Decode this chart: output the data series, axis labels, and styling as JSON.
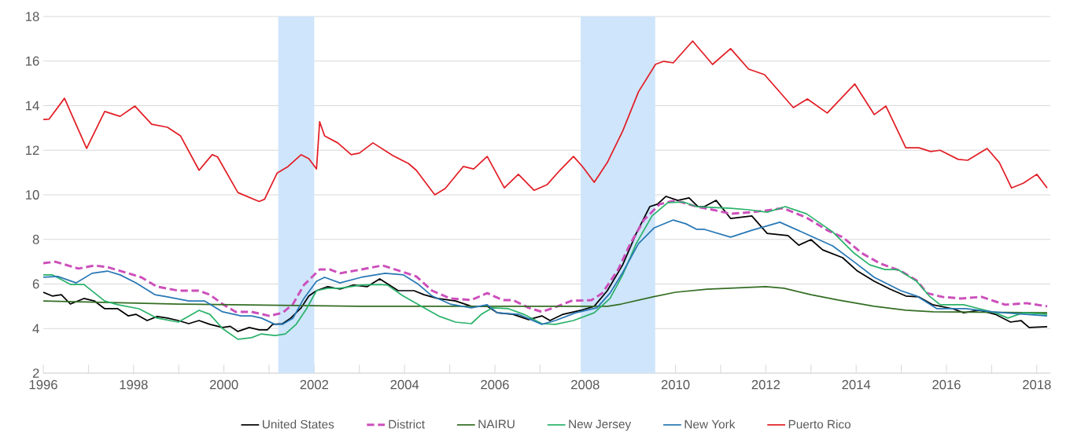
{
  "chart_data": {
    "type": "line",
    "xlim": [
      1996,
      2018.3
    ],
    "ylim": [
      2,
      18
    ],
    "xticks": [
      1996,
      {
        "value": 1997,
        "label": null
      },
      1998,
      {
        "value": 1999,
        "label": null
      },
      2000,
      {
        "value": 2001,
        "label": null
      },
      2002,
      {
        "value": 2003,
        "label": null
      },
      2004,
      {
        "value": 2005,
        "label": null
      },
      2006,
      {
        "value": 2007,
        "label": null
      },
      2008,
      {
        "value": 2009,
        "label": null
      },
      2010,
      {
        "value": 2011,
        "label": null
      },
      2012,
      {
        "value": 2013,
        "label": null
      },
      2014,
      {
        "value": 2015,
        "label": null
      },
      2016,
      {
        "value": 2017,
        "label": null
      },
      2018
    ],
    "yticks": [
      2,
      4,
      6,
      8,
      10,
      12,
      14,
      16,
      18
    ],
    "grid": "y",
    "legend": "bottom",
    "bands": [
      {
        "axis": "x",
        "from": 2001.2,
        "to": 2002.0,
        "color": "#cfe5fb"
      },
      {
        "axis": "x",
        "from": 2007.9,
        "to": 2009.55,
        "color": "#cfe5fb"
      }
    ],
    "series": [
      {
        "name": "United States",
        "color": "#000000",
        "x": [
          1996,
          1996.2,
          1996.4,
          1996.6,
          1996.9,
          1997.13,
          1997.36,
          1997.65,
          1997.88,
          1998.05,
          1998.3,
          1998.52,
          1998.75,
          1998.99,
          1999.22,
          1999.45,
          1999.69,
          1999.97,
          2000.14,
          2000.31,
          2000.56,
          2000.78,
          2000.96,
          2001.08,
          2001.3,
          2001.48,
          2001.71,
          2001.88,
          2002.05,
          2002.3,
          2002.57,
          2002.87,
          2003.17,
          2003.45,
          2003.86,
          2004.21,
          2004.43,
          2004.73,
          2005.13,
          2005.48,
          2005.83,
          2006.05,
          2006.4,
          2006.75,
          2007.04,
          2007.22,
          2007.51,
          2007.91,
          2008.2,
          2008.49,
          2008.83,
          2009.13,
          2009.43,
          2009.6,
          2009.79,
          2010.05,
          2010.3,
          2010.5,
          2010.64,
          2010.9,
          2011.22,
          2011.69,
          2012.03,
          2012.49,
          2012.73,
          2013.0,
          2013.26,
          2013.7,
          2014.03,
          2014.4,
          2014.75,
          2015.1,
          2015.39,
          2015.69,
          2016.14,
          2016.38,
          2016.73,
          2017.08,
          2017.42,
          2017.65,
          2017.83,
          2018.23
        ],
        "values": [
          5.63,
          5.46,
          5.52,
          5.1,
          5.35,
          5.24,
          4.89,
          4.89,
          4.57,
          4.64,
          4.36,
          4.54,
          4.47,
          4.36,
          4.22,
          4.36,
          4.19,
          4.05,
          4.1,
          3.87,
          4.05,
          3.94,
          3.94,
          4.19,
          4.22,
          4.47,
          4.93,
          5.46,
          5.7,
          5.88,
          5.77,
          5.95,
          5.88,
          6.23,
          5.7,
          5.7,
          5.52,
          5.35,
          5.24,
          5.0,
          5.0,
          4.71,
          4.64,
          4.4,
          4.57,
          4.36,
          4.64,
          4.82,
          5.0,
          5.7,
          6.86,
          8.27,
          9.47,
          9.58,
          9.93,
          9.75,
          9.86,
          9.47,
          9.47,
          9.75,
          8.94,
          9.05,
          8.27,
          8.17,
          7.74,
          7.99,
          7.53,
          7.18,
          6.58,
          6.12,
          5.77,
          5.46,
          5.42,
          5.07,
          4.89,
          4.71,
          4.82,
          4.64,
          4.29,
          4.36,
          4.05,
          4.08
        ]
      },
      {
        "name": "District",
        "color": "#cc4fbb",
        "line_style": "dashed",
        "x": [
          1996,
          1996.26,
          1996.78,
          1997.13,
          1997.42,
          1997.83,
          1998.17,
          1998.52,
          1998.99,
          1999.45,
          1999.69,
          1999.97,
          2000.26,
          2000.61,
          2001.01,
          2001.3,
          2001.53,
          2001.77,
          2002.12,
          2002.35,
          2002.57,
          2003.04,
          2003.51,
          2003.91,
          2004.26,
          2004.61,
          2005.01,
          2005.48,
          2005.83,
          2006.17,
          2006.4,
          2006.75,
          2007.04,
          2007.39,
          2007.69,
          2008.14,
          2008.38,
          2008.73,
          2009.0,
          2009.3,
          2009.65,
          2010.0,
          2010.47,
          2010.82,
          2011.22,
          2011.69,
          2011.97,
          2012.38,
          2012.9,
          2013.36,
          2013.7,
          2014.12,
          2014.52,
          2014.99,
          2015.34,
          2015.57,
          2015.91,
          2016.32,
          2016.78,
          2017.3,
          2017.77,
          2018.23
        ],
        "values": [
          6.93,
          7.0,
          6.69,
          6.83,
          6.76,
          6.51,
          6.3,
          5.88,
          5.7,
          5.7,
          5.52,
          5.1,
          4.75,
          4.75,
          4.57,
          4.71,
          5.1,
          5.95,
          6.65,
          6.65,
          6.48,
          6.65,
          6.83,
          6.58,
          6.34,
          5.7,
          5.35,
          5.28,
          5.59,
          5.28,
          5.28,
          4.93,
          4.75,
          5.0,
          5.24,
          5.28,
          5.59,
          6.65,
          7.81,
          8.87,
          9.58,
          9.75,
          9.47,
          9.33,
          9.15,
          9.22,
          9.29,
          9.4,
          8.98,
          8.41,
          8.1,
          7.39,
          6.93,
          6.58,
          6.16,
          5.59,
          5.42,
          5.35,
          5.42,
          5.07,
          5.14,
          5.0
        ]
      },
      {
        "name": "NAIRU",
        "color": "#336d23",
        "x": [
          1996,
          1999,
          2003,
          2008.5,
          2008.8,
          2009.5,
          2010.0,
          2010.7,
          2011.2,
          2012.0,
          2012.4,
          2013.0,
          2013.6,
          2014.4,
          2015.1,
          2015.7,
          2018.23
        ],
        "values": [
          5.24,
          5.1,
          5.0,
          5.0,
          5.1,
          5.42,
          5.63,
          5.77,
          5.81,
          5.88,
          5.81,
          5.52,
          5.28,
          5.0,
          4.82,
          4.75,
          4.71
        ]
      },
      {
        "name": "New Jersey",
        "color": "#2ab26a",
        "x": [
          1996,
          1996.2,
          1996.6,
          1996.9,
          1997.36,
          1997.65,
          1998.12,
          1998.52,
          1998.99,
          1999.45,
          1999.69,
          1999.97,
          2000.31,
          2000.61,
          2000.83,
          2001.13,
          2001.36,
          2001.6,
          2001.83,
          2002.05,
          2002.3,
          2002.57,
          2003.04,
          2003.45,
          2003.62,
          2003.97,
          2004.43,
          2004.78,
          2005.13,
          2005.48,
          2005.7,
          2005.95,
          2006.3,
          2006.64,
          2007.04,
          2007.34,
          2007.74,
          2008.2,
          2008.55,
          2008.83,
          2009.13,
          2009.48,
          2009.83,
          2010.17,
          2010.47,
          2011.22,
          2011.62,
          2012.03,
          2012.43,
          2012.9,
          2013.48,
          2013.95,
          2014.3,
          2014.64,
          2014.92,
          2015.34,
          2015.62,
          2015.86,
          2016.38,
          2016.73,
          2017.08,
          2017.36,
          2017.7,
          2018.23
        ],
        "values": [
          6.41,
          6.41,
          5.98,
          5.98,
          5.24,
          5.07,
          4.89,
          4.47,
          4.29,
          4.82,
          4.64,
          4.0,
          3.52,
          3.59,
          3.76,
          3.69,
          3.76,
          4.19,
          4.89,
          5.7,
          5.81,
          5.81,
          5.95,
          5.98,
          5.95,
          5.46,
          4.93,
          4.54,
          4.29,
          4.22,
          4.64,
          4.93,
          4.89,
          4.64,
          4.22,
          4.19,
          4.36,
          4.71,
          5.35,
          6.41,
          7.81,
          9.05,
          9.65,
          9.68,
          9.47,
          9.4,
          9.33,
          9.22,
          9.47,
          9.15,
          8.34,
          7.39,
          6.86,
          6.65,
          6.65,
          6.12,
          5.46,
          5.07,
          5.07,
          4.89,
          4.71,
          4.47,
          4.71,
          4.64
        ]
      },
      {
        "name": "New York",
        "color": "#2878b5",
        "x": [
          1996,
          1996.32,
          1996.73,
          1997.08,
          1997.42,
          1997.7,
          1998.05,
          1998.47,
          1998.75,
          1999.22,
          1999.57,
          1999.97,
          2000.38,
          2000.61,
          2000.83,
          2001.13,
          2001.3,
          2001.53,
          2001.77,
          2002.05,
          2002.23,
          2002.57,
          2003.04,
          2003.57,
          2003.97,
          2004.31,
          2004.61,
          2005.01,
          2005.48,
          2005.83,
          2006.05,
          2006.52,
          2007.04,
          2007.34,
          2007.79,
          2008.26,
          2008.55,
          2008.83,
          2009.18,
          2009.53,
          2009.95,
          2010.23,
          2010.47,
          2010.64,
          2011.22,
          2011.69,
          2012.31,
          2012.9,
          2013.48,
          2013.95,
          2014.4,
          2014.99,
          2015.34,
          2015.79,
          2016.43,
          2017.01,
          2018.23
        ],
        "values": [
          6.3,
          6.34,
          6.05,
          6.48,
          6.58,
          6.41,
          6.05,
          5.52,
          5.42,
          5.24,
          5.24,
          4.75,
          4.57,
          4.57,
          4.47,
          4.19,
          4.19,
          4.47,
          5.35,
          6.12,
          6.3,
          6.05,
          6.3,
          6.48,
          6.41,
          5.98,
          5.46,
          5.1,
          4.93,
          5.07,
          4.71,
          4.64,
          4.19,
          4.36,
          4.71,
          4.93,
          5.59,
          6.51,
          7.81,
          8.52,
          8.87,
          8.7,
          8.45,
          8.45,
          8.1,
          8.41,
          8.77,
          8.24,
          7.71,
          7.0,
          6.3,
          5.7,
          5.46,
          4.89,
          4.89,
          4.75,
          4.57
        ]
      },
      {
        "name": "Puerto Rico",
        "color": "#e21e26",
        "x": [
          1996,
          1996.13,
          1996.47,
          1996.96,
          1997.36,
          1997.7,
          1998.03,
          1998.4,
          1998.75,
          1999.04,
          1999.45,
          1999.74,
          1999.86,
          2000.31,
          2000.78,
          2000.9,
          2001.18,
          2001.42,
          2001.71,
          2001.88,
          2002.05,
          2002.12,
          2002.23,
          2002.52,
          2002.82,
          2003.0,
          2003.3,
          2003.74,
          2004.09,
          2004.26,
          2004.67,
          2004.9,
          2005.3,
          2005.53,
          2005.83,
          2006.21,
          2006.52,
          2006.87,
          2007.16,
          2007.44,
          2007.74,
          2007.94,
          2008.2,
          2008.49,
          2008.83,
          2009.18,
          2009.56,
          2009.74,
          2009.95,
          2010.38,
          2010.82,
          2011.22,
          2011.62,
          2011.97,
          2012.61,
          2012.92,
          2013.36,
          2013.97,
          2014.4,
          2014.66,
          2015.1,
          2015.39,
          2015.65,
          2015.86,
          2016.26,
          2016.47,
          2016.9,
          2017.17,
          2017.44,
          2017.7,
          2018.0,
          2018.23
        ],
        "values": [
          13.38,
          13.4,
          14.33,
          12.08,
          13.74,
          13.52,
          13.98,
          13.17,
          13.03,
          12.64,
          11.1,
          11.8,
          11.7,
          10.1,
          9.7,
          9.8,
          10.98,
          11.27,
          11.8,
          11.62,
          11.16,
          13.28,
          12.64,
          12.33,
          11.8,
          11.87,
          12.33,
          11.76,
          11.4,
          11.1,
          10.0,
          10.28,
          11.27,
          11.16,
          11.72,
          10.31,
          10.92,
          10.2,
          10.46,
          11.1,
          11.72,
          11.27,
          10.56,
          11.45,
          12.86,
          14.62,
          15.86,
          15.99,
          15.92,
          16.9,
          15.85,
          16.56,
          15.64,
          15.39,
          13.91,
          14.3,
          13.67,
          14.97,
          13.6,
          13.98,
          12.11,
          12.11,
          11.94,
          12.0,
          11.59,
          11.55,
          12.08,
          11.45,
          10.31,
          10.52,
          10.92,
          10.31
        ]
      }
    ]
  }
}
